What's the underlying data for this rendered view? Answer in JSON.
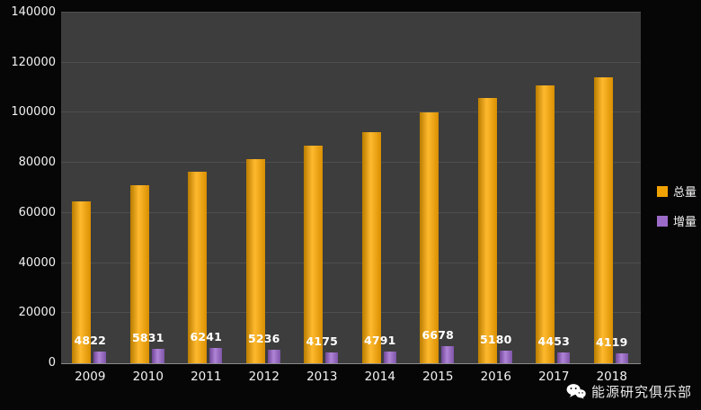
{
  "chart_data": {
    "type": "bar",
    "categories": [
      "2009",
      "2010",
      "2011",
      "2012",
      "2013",
      "2014",
      "2015",
      "2016",
      "2017",
      "2018"
    ],
    "series": [
      {
        "name": "总量",
        "color": "#F0A202",
        "values": [
          64500,
          71000,
          76500,
          81500,
          87000,
          92300,
          100300,
          106000,
          111000,
          114000
        ]
      },
      {
        "name": "增量",
        "color": "#9B6BC8",
        "values": [
          4822,
          5831,
          6241,
          5236,
          4175,
          4791,
          6678,
          5180,
          4453,
          4119
        ]
      }
    ],
    "title": "",
    "xlabel": "",
    "ylabel": "",
    "ylim": [
      0,
      140000
    ],
    "ytick_step": 20000,
    "yticks": [
      "0",
      "20000",
      "40000",
      "60000",
      "80000",
      "100000",
      "120000",
      "140000"
    ],
    "grid": true,
    "legend_position": "right",
    "data_labels": [
      4822,
      5831,
      6241,
      5236,
      4175,
      4791,
      6678,
      5180,
      4453,
      4119
    ],
    "data_labels_series": "增量"
  },
  "legend": {
    "items": [
      {
        "label": "总量",
        "color": "#F0A202"
      },
      {
        "label": "增量",
        "color": "#9B6BC8"
      }
    ]
  },
  "watermark": {
    "icon": "wechat-icon",
    "text": "能源研究俱乐部"
  }
}
